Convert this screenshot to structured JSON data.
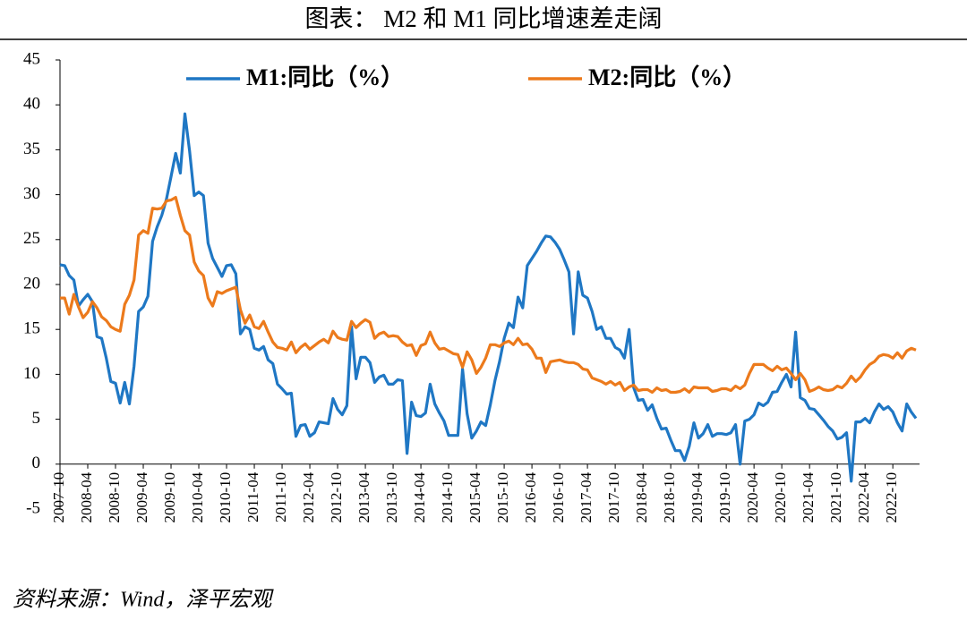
{
  "chart_data": {
    "type": "line",
    "title": "图表： M2 和 M1 同比增速差走阔",
    "source": "资料来源：Wind，泽平宏观",
    "categories": [
      "2007-10",
      null,
      null,
      null,
      null,
      null,
      "2008-04",
      null,
      null,
      null,
      null,
      null,
      "2008-10",
      null,
      null,
      null,
      null,
      null,
      "2009-04",
      null,
      null,
      null,
      null,
      null,
      "2009-10",
      null,
      null,
      null,
      null,
      null,
      "2010-04",
      null,
      null,
      null,
      null,
      null,
      "2010-10",
      null,
      null,
      null,
      null,
      null,
      "2011-04",
      null,
      null,
      null,
      null,
      null,
      "2011-10",
      null,
      null,
      null,
      null,
      null,
      "2012-04",
      null,
      null,
      null,
      null,
      null,
      "2012-10",
      null,
      null,
      null,
      null,
      null,
      "2013-04",
      null,
      null,
      null,
      null,
      null,
      "2013-10",
      null,
      null,
      null,
      null,
      null,
      "2014-04",
      null,
      null,
      null,
      null,
      null,
      "2014-10",
      null,
      null,
      null,
      null,
      null,
      "2015-04",
      null,
      null,
      null,
      null,
      null,
      "2015-10",
      null,
      null,
      null,
      null,
      null,
      "2016-04",
      null,
      null,
      null,
      null,
      null,
      "2016-10",
      null,
      null,
      null,
      null,
      null,
      "2017-04",
      null,
      null,
      null,
      null,
      null,
      "2017-10",
      null,
      null,
      null,
      null,
      null,
      "2018-04",
      null,
      null,
      null,
      null,
      null,
      "2018-10",
      null,
      null,
      null,
      null,
      null,
      "2019-04",
      null,
      null,
      null,
      null,
      null,
      "2019-10",
      null,
      null,
      null,
      null,
      null,
      "2020-04",
      null,
      null,
      null,
      null,
      null,
      "2020-10",
      null,
      null,
      null,
      null,
      null,
      "2021-04",
      null,
      null,
      null,
      null,
      null,
      "2021-10",
      null,
      null,
      null,
      null,
      null,
      "2022-04",
      null,
      null,
      null,
      null,
      null,
      "2022-10",
      null,
      null,
      null,
      null,
      null
    ],
    "series": [
      {
        "name": "M1:同比（%）",
        "color": "#1f77c4",
        "values": [
          22.2,
          22.1,
          21.0,
          20.5,
          17.6,
          18.3,
          18.9,
          18.1,
          14.2,
          14.0,
          11.8,
          9.2,
          9.0,
          6.8,
          9.1,
          6.7,
          10.9,
          17.0,
          17.5,
          18.7,
          24.8,
          26.4,
          27.7,
          29.5,
          32.0,
          34.6,
          32.4,
          39.0,
          34.9,
          29.9,
          30.3,
          29.9,
          24.6,
          22.9,
          21.9,
          20.9,
          22.1,
          22.2,
          21.2,
          14.5,
          15.3,
          15.0,
          12.9,
          12.7,
          13.1,
          11.6,
          11.2,
          8.9,
          8.4,
          7.8,
          7.9,
          3.1,
          4.3,
          4.4,
          3.1,
          3.5,
          4.7,
          4.6,
          4.5,
          7.3,
          6.1,
          5.5,
          6.5,
          15.3,
          9.5,
          11.9,
          11.9,
          11.3,
          9.1,
          9.7,
          9.9,
          8.9,
          8.9,
          9.4,
          9.3,
          1.2,
          6.9,
          5.4,
          5.3,
          5.7,
          8.9,
          6.7,
          5.7,
          4.8,
          3.2,
          3.2,
          3.2,
          10.6,
          5.6,
          2.9,
          3.7,
          4.7,
          4.3,
          6.6,
          9.3,
          11.4,
          14.0,
          15.7,
          15.2,
          18.6,
          17.4,
          22.1,
          22.9,
          23.7,
          24.6,
          25.4,
          25.3,
          24.7,
          23.9,
          22.7,
          21.4,
          14.5,
          21.4,
          18.8,
          18.5,
          17.0,
          15.0,
          15.3,
          14.0,
          14.0,
          13.0,
          12.7,
          11.8,
          15.0,
          8.5,
          7.1,
          7.2,
          6.0,
          6.6,
          5.1,
          3.9,
          4.0,
          2.7,
          1.5,
          1.5,
          0.4,
          2.0,
          4.6,
          2.9,
          3.4,
          4.4,
          3.1,
          3.4,
          3.4,
          3.3,
          3.5,
          4.4,
          0.0,
          4.8,
          5.0,
          5.5,
          6.8,
          6.5,
          6.9,
          8.0,
          8.1,
          9.1,
          10.0,
          8.6,
          14.7,
          7.4,
          7.1,
          6.2,
          6.1,
          5.5,
          4.9,
          4.2,
          3.7,
          2.8,
          3.0,
          3.5,
          -1.9,
          4.7,
          4.7,
          5.1,
          4.6,
          5.8,
          6.7,
          6.1,
          6.4,
          5.8,
          4.6,
          3.7,
          6.7,
          5.8,
          5.1
        ]
      },
      {
        "name": "M2:同比（%）",
        "color": "#ec7a1c",
        "values": [
          18.5,
          18.5,
          16.7,
          18.9,
          17.5,
          16.3,
          16.9,
          18.1,
          17.4,
          16.4,
          16.0,
          15.3,
          15.0,
          14.8,
          17.8,
          18.8,
          20.5,
          25.5,
          26.0,
          25.7,
          28.5,
          28.4,
          28.5,
          29.3,
          29.4,
          29.7,
          27.7,
          26.0,
          25.5,
          22.5,
          21.5,
          21.0,
          18.5,
          17.6,
          19.2,
          19.0,
          19.3,
          19.5,
          19.7,
          17.2,
          15.7,
          16.6,
          15.3,
          15.1,
          15.9,
          14.7,
          13.6,
          13.0,
          12.9,
          12.7,
          13.6,
          12.4,
          13.0,
          13.4,
          12.8,
          13.2,
          13.6,
          13.9,
          13.5,
          14.8,
          14.1,
          13.9,
          13.8,
          15.9,
          15.2,
          15.7,
          16.1,
          15.8,
          14.0,
          14.5,
          14.7,
          14.2,
          14.3,
          14.2,
          13.6,
          13.2,
          13.3,
          12.1,
          13.2,
          13.4,
          14.7,
          13.5,
          12.8,
          12.9,
          12.6,
          12.3,
          12.2,
          10.8,
          12.5,
          11.6,
          10.1,
          10.8,
          11.8,
          13.3,
          13.3,
          13.1,
          13.5,
          13.7,
          13.3,
          14.0,
          13.3,
          13.4,
          12.8,
          11.8,
          11.8,
          10.2,
          11.4,
          11.5,
          11.6,
          11.4,
          11.3,
          11.3,
          11.1,
          10.6,
          10.5,
          9.6,
          9.4,
          9.2,
          8.9,
          9.2,
          8.8,
          9.1,
          8.2,
          8.6,
          8.8,
          8.2,
          8.3,
          8.3,
          8.0,
          8.5,
          8.2,
          8.3,
          8.0,
          8.0,
          8.1,
          8.4,
          8.0,
          8.6,
          8.5,
          8.5,
          8.5,
          8.1,
          8.2,
          8.4,
          8.4,
          8.2,
          8.7,
          8.4,
          8.8,
          10.1,
          11.1,
          11.1,
          11.1,
          10.7,
          10.4,
          10.9,
          10.5,
          10.7,
          10.1,
          9.4,
          10.1,
          9.4,
          8.1,
          8.3,
          8.6,
          8.3,
          8.2,
          8.3,
          8.7,
          8.5,
          9.0,
          9.8,
          9.2,
          9.7,
          10.5,
          11.1,
          11.4,
          12.0,
          12.2,
          12.1,
          11.8,
          12.4,
          11.8,
          12.6,
          12.9,
          12.7
        ]
      }
    ],
    "ylim": [
      -5,
      45
    ],
    "yticks": [
      -5,
      0,
      5,
      10,
      15,
      20,
      25,
      30,
      35,
      40,
      45
    ]
  }
}
